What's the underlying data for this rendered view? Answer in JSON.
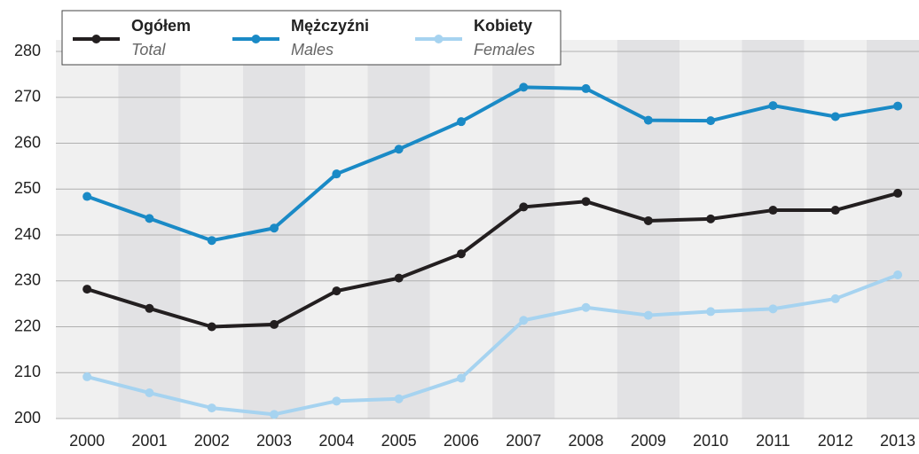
{
  "chart_data": {
    "type": "line",
    "categories": [
      "2000",
      "2001",
      "2002",
      "2003",
      "2004",
      "2005",
      "2006",
      "2007",
      "2008",
      "2009",
      "2010",
      "2011",
      "2012",
      "2013"
    ],
    "series": [
      {
        "name": "Ogółem",
        "name_en": "Total",
        "color": "#231f20",
        "values": [
          228.2,
          224,
          220,
          220.5,
          227.8,
          230.6,
          235.9,
          246.1,
          247.3,
          243.1,
          243.5,
          245.4,
          245.4,
          249.1
        ]
      },
      {
        "name": "Mężczyźni",
        "name_en": "Males",
        "color": "#1a8ac6",
        "values": [
          248.4,
          243.6,
          238.8,
          241.5,
          253.3,
          258.7,
          264.7,
          272.2,
          271.9,
          265,
          264.9,
          268.2,
          265.8,
          268.1
        ]
      },
      {
        "name": "Kobiety",
        "name_en": "Females",
        "color": "#a6d3f0",
        "values": [
          209.1,
          205.6,
          202.3,
          200.9,
          203.8,
          204.3,
          208.8,
          221.4,
          224.2,
          222.5,
          223.3,
          223.9,
          226.1,
          231.3
        ]
      }
    ],
    "ylim": [
      200,
      280
    ],
    "yticks": [
      200,
      210,
      220,
      230,
      240,
      250,
      260,
      270,
      280
    ],
    "grid": true,
    "legend": "top"
  }
}
